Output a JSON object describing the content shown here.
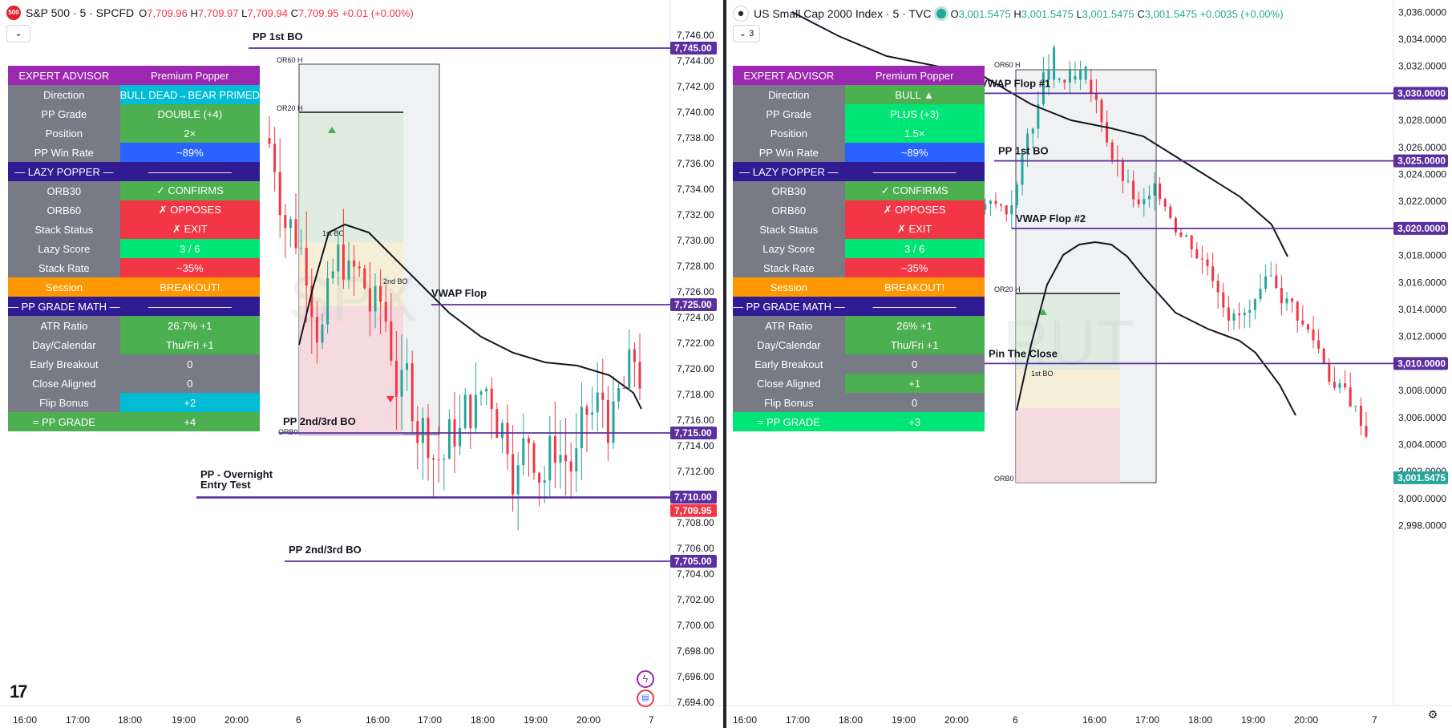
{
  "left": {
    "symbol_badge": "500",
    "title": "S&P 500 · 5 · SPCFD",
    "ohlc": {
      "o": "7,709.96",
      "h": "7,709.97",
      "l": "7,709.94",
      "c": "7,709.95",
      "chg": "+0.01 (+0.00%)"
    },
    "collapse_glyph": "⌄",
    "watermark": "SPX",
    "y_ticks": [
      "7,746.00",
      "7,744.00",
      "7,742.00",
      "7,740.00",
      "7,738.00",
      "7,736.00",
      "7,734.00",
      "7,732.00",
      "7,730.00",
      "7,728.00",
      "7,726.00",
      "7,724.00",
      "7,722.00",
      "7,720.00",
      "7,718.00",
      "7,716.00",
      "7,714.00",
      "7,712.00",
      "7,710.00",
      "7,708.00",
      "7,706.00",
      "7,704.00",
      "7,702.00",
      "7,700.00",
      "7,698.00",
      "7,696.00",
      "7,694.00"
    ],
    "x_ticks": [
      "16:00",
      "17:00",
      "18:00",
      "19:00",
      "20:00",
      "6",
      "16:00",
      "17:00",
      "18:00",
      "19:00",
      "20:00",
      "7"
    ],
    "levels": [
      {
        "label": "PP 1st BO",
        "price": "7,745.00",
        "value": 7745
      },
      {
        "label": "VWAP Flop",
        "price": "7,725.00",
        "value": 7725
      },
      {
        "label": "PP 2nd/3rd BO",
        "price": "7,715.00",
        "value": 7715
      },
      {
        "label": "PP - Overnight",
        "label2": "Entry Test",
        "price": "7,710.00",
        "value": 7710
      },
      {
        "label": "PP 2nd/3rd BO",
        "price": "7,705.00",
        "value": 7705
      }
    ],
    "current_price": "7,709.95",
    "or_labels": {
      "or60": "OR60 H",
      "or20": "OR20 H",
      "orb0": "ORB0",
      "bo1": "1st BO",
      "bo2": "2nd BO"
    },
    "table": [
      {
        "k": "EXPERT ADVISOR",
        "v": "Premium Popper",
        "kbg": "#9c27b0",
        "vbg": "#9c27b0"
      },
      {
        "k": "Direction",
        "v": "BULL DEAD→BEAR PRIMED",
        "vbg": "#00bcd4"
      },
      {
        "k": "PP Grade",
        "v": "DOUBLE (+4)",
        "vbg": "#4caf50"
      },
      {
        "k": "Position",
        "v": "2×",
        "vbg": "#4caf50"
      },
      {
        "k": "PP Win Rate",
        "v": "~89%",
        "vbg": "#2962ff"
      },
      {
        "k": "— LAZY POPPER —",
        "v": "————————",
        "kbg": "#311b92",
        "vbg": "#311b92"
      },
      {
        "k": "ORB30",
        "v": "✓ CONFIRMS",
        "vbg": "#4caf50"
      },
      {
        "k": "ORB60",
        "v": "✗ OPPOSES",
        "vbg": "#f23645"
      },
      {
        "k": "Stack Status",
        "v": "✗ EXIT",
        "vbg": "#f23645"
      },
      {
        "k": "Lazy Score",
        "v": "3 / 6",
        "vbg": "#00e676"
      },
      {
        "k": "Stack Rate",
        "v": "~35%",
        "vbg": "#f23645"
      },
      {
        "k": "Session",
        "v": "BREAKOUT!",
        "kbg": "#ff9800",
        "vbg": "#ff9800"
      },
      {
        "k": "— PP GRADE MATH —",
        "v": "————————",
        "kbg": "#311b92",
        "vbg": "#311b92"
      },
      {
        "k": "ATR Ratio",
        "v": "26.7% +1",
        "vbg": "#4caf50"
      },
      {
        "k": "Day/Calendar",
        "v": "Thu/Fri +1",
        "vbg": "#4caf50"
      },
      {
        "k": "Early Breakout",
        "v": "0",
        "vbg": "#787b86"
      },
      {
        "k": "Close Aligned",
        "v": "0",
        "vbg": "#787b86"
      },
      {
        "k": "Flip Bonus",
        "v": "+2",
        "vbg": "#00bcd4"
      },
      {
        "k": "= PP GRADE",
        "v": "+4",
        "kbg": "#4caf50",
        "vbg": "#4caf50"
      }
    ]
  },
  "right": {
    "title": "US Small Cap 2000 Index · 5 · TVC",
    "ohlc": {
      "o": "3,001.5475",
      "h": "3,001.5475",
      "l": "3,001.5475",
      "c": "3,001.5475",
      "chg": "+0.0035 (+0.00%)"
    },
    "collapse_glyph": "⌄ 3",
    "watermark": "RUT",
    "y_ticks": [
      "3,036.0000",
      "3,034.0000",
      "3,032.0000",
      "3,030.0000",
      "3,028.0000",
      "3,026.0000",
      "3,024.0000",
      "3,022.0000",
      "3,020.0000",
      "3,018.0000",
      "3,016.0000",
      "3,014.0000",
      "3,012.0000",
      "3,010.0000",
      "3,008.0000",
      "3,006.0000",
      "3,004.0000",
      "3,002.0000",
      "3,000.0000",
      "2,998.0000"
    ],
    "x_ticks": [
      "16:00",
      "17:00",
      "18:00",
      "19:00",
      "20:00",
      "6",
      "16:00",
      "17:00",
      "18:00",
      "19:00",
      "20:00",
      "7"
    ],
    "levels": [
      {
        "label": "VWAP Flop #1",
        "price": "3,030.0000",
        "value": 3030
      },
      {
        "label": "PP 1st BO",
        "price": "3,025.0000",
        "value": 3025
      },
      {
        "label": "VWAP Flop #2",
        "price": "3,020.0000",
        "value": 3020
      },
      {
        "label": "Pin The Close",
        "price": "3,010.0000",
        "value": 3010
      }
    ],
    "current_price": "3,001.5475",
    "or_labels": {
      "or60": "OR60 H",
      "or20": "OR20 H",
      "orb0": "ORB0",
      "bo1": "1st BO"
    },
    "table": [
      {
        "k": "EXPERT ADVISOR",
        "v": "Premium Popper",
        "kbg": "#9c27b0",
        "vbg": "#9c27b0"
      },
      {
        "k": "Direction",
        "v": "BULL ▲",
        "vbg": "#4caf50"
      },
      {
        "k": "PP Grade",
        "v": "PLUS (+3)",
        "vbg": "#00e676"
      },
      {
        "k": "Position",
        "v": "1.5×",
        "vbg": "#00e676"
      },
      {
        "k": "PP Win Rate",
        "v": "~89%",
        "vbg": "#2962ff"
      },
      {
        "k": "— LAZY POPPER —",
        "v": "————————",
        "kbg": "#311b92",
        "vbg": "#311b92"
      },
      {
        "k": "ORB30",
        "v": "✓ CONFIRMS",
        "vbg": "#4caf50"
      },
      {
        "k": "ORB60",
        "v": "✗ OPPOSES",
        "vbg": "#f23645"
      },
      {
        "k": "Stack Status",
        "v": "✗ EXIT",
        "vbg": "#f23645"
      },
      {
        "k": "Lazy Score",
        "v": "3 / 6",
        "vbg": "#00e676"
      },
      {
        "k": "Stack Rate",
        "v": "~35%",
        "vbg": "#f23645"
      },
      {
        "k": "Session",
        "v": "BREAKOUT!",
        "kbg": "#ff9800",
        "vbg": "#ff9800"
      },
      {
        "k": "— PP GRADE MATH —",
        "v": "————————",
        "kbg": "#311b92",
        "vbg": "#311b92"
      },
      {
        "k": "ATR Ratio",
        "v": "26% +1",
        "vbg": "#4caf50"
      },
      {
        "k": "Day/Calendar",
        "v": "Thu/Fri +1",
        "vbg": "#4caf50"
      },
      {
        "k": "Early Breakout",
        "v": "0",
        "vbg": "#787b86"
      },
      {
        "k": "Close Aligned",
        "v": "+1",
        "vbg": "#4caf50"
      },
      {
        "k": "Flip Bonus",
        "v": "0",
        "vbg": "#787b86"
      },
      {
        "k": "= PP GRADE",
        "v": "+3",
        "kbg": "#00e676",
        "vbg": "#00e676"
      }
    ]
  },
  "colors": {
    "up": "#26a69a",
    "down": "#f23645",
    "level": "#5b2fa0",
    "price_tag": "#5b2fa0",
    "current_left": "#f23645",
    "current_right": "#26a69a"
  }
}
